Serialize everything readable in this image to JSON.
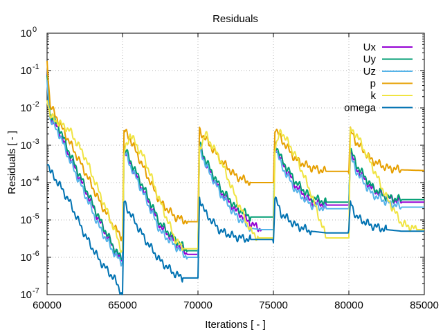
{
  "chart_data": {
    "type": "line",
    "title": "Residuals",
    "xlabel": "Iterations [ - ]",
    "ylabel": "Residuals [ - ]",
    "xlim": [
      60000,
      85000
    ],
    "ylim": [
      1e-07,
      1
    ],
    "yscale": "log",
    "grid": true,
    "legend_position": "top-right",
    "x_ticks": [
      60000,
      65000,
      70000,
      75000,
      80000,
      85000
    ],
    "x_tick_labels": [
      "60000",
      "65000",
      "70000",
      "75000",
      "80000",
      "85000"
    ],
    "y_ticks": [
      1e-07,
      1e-06,
      1e-05,
      0.0001,
      0.001,
      0.01,
      0.1,
      1
    ],
    "y_tick_mantissa": [
      "10",
      "10",
      "10",
      "10",
      "10",
      "10",
      "10",
      "10"
    ],
    "y_tick_exponents": [
      "-7",
      "-6",
      "-5",
      "-4",
      "-3",
      "-2",
      "-1",
      "0"
    ],
    "series": [
      {
        "name": "Ux",
        "color": "#9400d3",
        "points": [
          [
            60000,
            0.06
          ],
          [
            60200,
            0.006
          ],
          [
            60800,
            0.0025
          ],
          [
            61500,
            0.0005
          ],
          [
            62500,
            7e-05
          ],
          [
            63500,
            9e-06
          ],
          [
            64500,
            1.5e-06
          ],
          [
            64950,
            8e-07
          ],
          [
            65000,
            8e-07
          ],
          [
            65100,
            0.0008
          ],
          [
            65500,
            0.00035
          ],
          [
            66500,
            5e-05
          ],
          [
            67500,
            7e-06
          ],
          [
            68500,
            2.5e-06
          ],
          [
            69300,
            1.2e-06
          ],
          [
            70000,
            1.2e-06
          ],
          [
            70100,
            0.001
          ],
          [
            70500,
            0.00035
          ],
          [
            71500,
            6e-05
          ],
          [
            72500,
            1.8e-05
          ],
          [
            73500,
            8e-06
          ],
          [
            74200,
            5.5e-06
          ],
          [
            75000,
            5.5e-06
          ],
          [
            75100,
            0.0011
          ],
          [
            75500,
            0.0004
          ],
          [
            76500,
            8e-05
          ],
          [
            77500,
            3e-05
          ],
          [
            78500,
            2.5e-05
          ],
          [
            80000,
            2.5e-05
          ],
          [
            80100,
            0.0007
          ],
          [
            80500,
            0.00025
          ],
          [
            81500,
            7e-05
          ],
          [
            82500,
            4e-05
          ],
          [
            83500,
            3e-05
          ],
          [
            85000,
            3e-05
          ]
        ]
      },
      {
        "name": "Uy",
        "color": "#009e73",
        "points": [
          [
            60000,
            0.06
          ],
          [
            60200,
            0.007
          ],
          [
            60800,
            0.003
          ],
          [
            61500,
            0.0006
          ],
          [
            62500,
            8e-05
          ],
          [
            63500,
            1e-05
          ],
          [
            64500,
            1.6e-06
          ],
          [
            64950,
            9e-07
          ],
          [
            65000,
            9e-07
          ],
          [
            65100,
            0.0009
          ],
          [
            65500,
            0.0004
          ],
          [
            66500,
            6e-05
          ],
          [
            67500,
            8e-06
          ],
          [
            68500,
            3e-06
          ],
          [
            69300,
            1.5e-06
          ],
          [
            70000,
            1.5e-06
          ],
          [
            70100,
            0.0011
          ],
          [
            70500,
            0.0004
          ],
          [
            71500,
            7e-05
          ],
          [
            72500,
            2.2e-05
          ],
          [
            73500,
            1.2e-05
          ],
          [
            75000,
            1.2e-05
          ],
          [
            75100,
            0.0012
          ],
          [
            75500,
            0.00045
          ],
          [
            76500,
            0.0001
          ],
          [
            77500,
            4e-05
          ],
          [
            78500,
            3e-05
          ],
          [
            80000,
            3e-05
          ],
          [
            80100,
            0.0008
          ],
          [
            80500,
            0.0003
          ],
          [
            81500,
            8e-05
          ],
          [
            82500,
            4e-05
          ],
          [
            83500,
            3.5e-05
          ],
          [
            85000,
            3.5e-05
          ]
        ]
      },
      {
        "name": "Uz",
        "color": "#56b4e9",
        "points": [
          [
            60000,
            0.05
          ],
          [
            60200,
            0.005
          ],
          [
            60800,
            0.002
          ],
          [
            61500,
            0.0004
          ],
          [
            62500,
            5e-05
          ],
          [
            63500,
            6e-06
          ],
          [
            64500,
            1.2e-06
          ],
          [
            64950,
            7e-07
          ],
          [
            65000,
            7e-07
          ],
          [
            65100,
            0.0007
          ],
          [
            65500,
            0.0003
          ],
          [
            66500,
            4e-05
          ],
          [
            67500,
            5e-06
          ],
          [
            68500,
            2e-06
          ],
          [
            69300,
            1e-06
          ],
          [
            70000,
            1e-06
          ],
          [
            70100,
            0.0009
          ],
          [
            70500,
            0.0003
          ],
          [
            71500,
            5e-05
          ],
          [
            72500,
            1.3e-05
          ],
          [
            73500,
            6e-06
          ],
          [
            74200,
            5.5e-06
          ],
          [
            75000,
            5.5e-06
          ],
          [
            75100,
            0.001
          ],
          [
            75500,
            0.0003
          ],
          [
            76500,
            6e-05
          ],
          [
            77500,
            2.5e-05
          ],
          [
            78500,
            2e-05
          ],
          [
            80000,
            2e-05
          ],
          [
            80100,
            0.0005
          ],
          [
            80500,
            0.0002
          ],
          [
            81500,
            5e-05
          ],
          [
            82500,
            3e-05
          ],
          [
            83500,
            2.2e-05
          ],
          [
            85000,
            2.2e-05
          ]
        ]
      },
      {
        "name": "p",
        "color": "#e69f00",
        "points": [
          [
            60000,
            0.2
          ],
          [
            60200,
            0.012
          ],
          [
            60800,
            0.004
          ],
          [
            61500,
            0.0012
          ],
          [
            62500,
            0.0002
          ],
          [
            63500,
            3e-05
          ],
          [
            64500,
            6e-06
          ],
          [
            64950,
            3.5e-06
          ],
          [
            65000,
            3.5e-06
          ],
          [
            65100,
            0.0025
          ],
          [
            65500,
            0.0015
          ],
          [
            66500,
            0.0002
          ],
          [
            67500,
            3e-05
          ],
          [
            68500,
            1.2e-05
          ],
          [
            69300,
            9e-06
          ],
          [
            70000,
            9e-06
          ],
          [
            70100,
            0.0025
          ],
          [
            70500,
            0.0015
          ],
          [
            71500,
            0.0004
          ],
          [
            72500,
            0.00015
          ],
          [
            73500,
            0.0001
          ],
          [
            75000,
            0.0001
          ],
          [
            75100,
            0.003
          ],
          [
            75500,
            0.0015
          ],
          [
            76500,
            0.0004
          ],
          [
            77500,
            0.00025
          ],
          [
            78500,
            0.0002
          ],
          [
            80000,
            0.0002
          ],
          [
            80100,
            0.0025
          ],
          [
            80500,
            0.0012
          ],
          [
            81500,
            0.0004
          ],
          [
            82500,
            0.00025
          ],
          [
            83500,
            0.00022
          ],
          [
            85000,
            0.00021
          ]
        ]
      },
      {
        "name": "k",
        "color": "#f0e442",
        "points": [
          [
            60000,
            0.02
          ],
          [
            60200,
            0.006
          ],
          [
            60800,
            0.004
          ],
          [
            61500,
            0.0025
          ],
          [
            62500,
            0.0005
          ],
          [
            63500,
            5e-05
          ],
          [
            64500,
            5e-06
          ],
          [
            64950,
            1.5e-06
          ],
          [
            65000,
            1.5e-06
          ],
          [
            65100,
            0.0006
          ],
          [
            65500,
            0.002
          ],
          [
            66500,
            0.0004
          ],
          [
            67500,
            3e-05
          ],
          [
            68500,
            3e-06
          ],
          [
            69000,
            1.7e-06
          ],
          [
            70000,
            1.7e-06
          ],
          [
            70100,
            0.0008
          ],
          [
            70500,
            0.002
          ],
          [
            71500,
            0.0004
          ],
          [
            72500,
            4e-05
          ],
          [
            73500,
            5e-06
          ],
          [
            74000,
            3.3e-06
          ],
          [
            75000,
            3.3e-06
          ],
          [
            75100,
            0.0008
          ],
          [
            75500,
            0.0025
          ],
          [
            76500,
            0.0005
          ],
          [
            77500,
            5e-05
          ],
          [
            78500,
            3.3e-06
          ],
          [
            80000,
            3.3e-06
          ],
          [
            80100,
            0.0025
          ],
          [
            80500,
            0.002
          ],
          [
            81500,
            0.0003
          ],
          [
            82500,
            4e-05
          ],
          [
            83500,
            8e-06
          ],
          [
            84500,
            5.5e-06
          ],
          [
            85000,
            5.5e-06
          ]
        ]
      },
      {
        "name": "omega",
        "color": "#0072b2",
        "points": [
          [
            60000,
            0.0004
          ],
          [
            60200,
            0.0002
          ],
          [
            60800,
            9e-05
          ],
          [
            61500,
            3e-05
          ],
          [
            62500,
            4e-06
          ],
          [
            63500,
            8e-07
          ],
          [
            64500,
            2.5e-07
          ],
          [
            64950,
            1.1e-07
          ],
          [
            65000,
            1e-07
          ],
          [
            65100,
            3e-05
          ],
          [
            65500,
            1.5e-05
          ],
          [
            66500,
            3e-06
          ],
          [
            67500,
            8e-07
          ],
          [
            68500,
            3.5e-07
          ],
          [
            69000,
            2.8e-07
          ],
          [
            70000,
            2.8e-07
          ],
          [
            70100,
            4e-05
          ],
          [
            70500,
            1.5e-05
          ],
          [
            71500,
            5e-06
          ],
          [
            72500,
            3.5e-06
          ],
          [
            73500,
            3e-06
          ],
          [
            75000,
            3e-06
          ],
          [
            75100,
            4e-05
          ],
          [
            75500,
            1.5e-05
          ],
          [
            76500,
            7e-06
          ],
          [
            77500,
            5e-06
          ],
          [
            78500,
            4.5e-06
          ],
          [
            80000,
            4.5e-06
          ],
          [
            80100,
            3e-05
          ],
          [
            80500,
            1.2e-05
          ],
          [
            81500,
            7e-06
          ],
          [
            82500,
            5.5e-06
          ],
          [
            83500,
            5e-06
          ],
          [
            85000,
            5e-06
          ]
        ]
      }
    ]
  }
}
